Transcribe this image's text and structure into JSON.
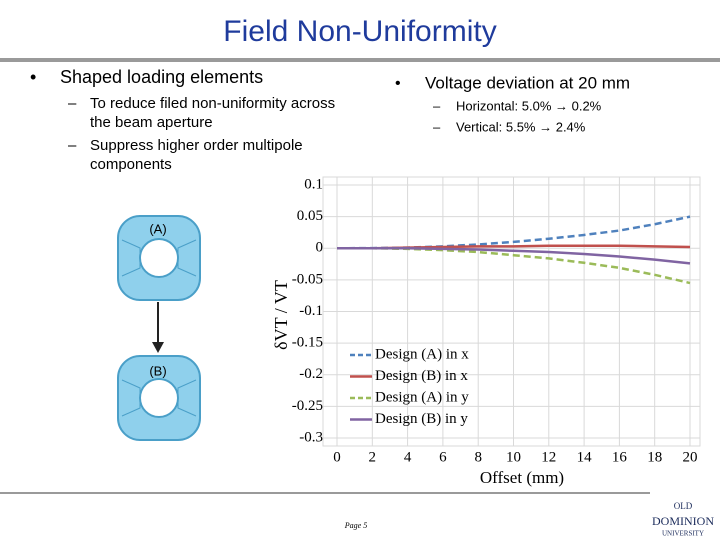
{
  "slide": {
    "title": "Field Non-Uniformity",
    "left_bullet": "Shaped loading elements",
    "left_sub": [
      [
        "To reduce filed non-uniformity across",
        "the beam aperture"
      ],
      [
        "Suppress higher order multipole",
        "components"
      ]
    ],
    "right_bullet": "Voltage deviation at 20 mm",
    "right_sub": [
      "Horizontal: 5.0% → 0.2%",
      "Vertical: 5.5% → 2.4%"
    ],
    "image_labels": [
      "(A)",
      "(B)"
    ],
    "footer": "Page 5",
    "logo": [
      "OLD",
      "DOMINION",
      "UNIVERSITY"
    ]
  },
  "chart_data": {
    "type": "line",
    "xlabel": "Offset (mm)",
    "ylabel": "δVT / VT",
    "x": [
      0,
      2,
      4,
      6,
      8,
      10,
      12,
      14,
      16,
      18,
      20
    ],
    "series": [
      {
        "name": "Design (A) in x",
        "color": "#4f81bd",
        "dashed": true,
        "values": [
          0,
          0.0002,
          0.001,
          0.003,
          0.006,
          0.01,
          0.015,
          0.021,
          0.028,
          0.038,
          0.05
        ]
      },
      {
        "name": "Design (B) in x",
        "color": "#c0504d",
        "dashed": false,
        "values": [
          0,
          0,
          0.001,
          0.002,
          0.003,
          0.003,
          0.004,
          0.004,
          0.004,
          0.003,
          0.002
        ]
      },
      {
        "name": "Design (A) in y",
        "color": "#9bbb59",
        "dashed": true,
        "values": [
          0,
          0,
          -0.001,
          -0.003,
          -0.006,
          -0.011,
          -0.016,
          -0.023,
          -0.031,
          -0.042,
          -0.055
        ]
      },
      {
        "name": "Design (B) in y",
        "color": "#8064a2",
        "dashed": false,
        "values": [
          0,
          0,
          0,
          -0.001,
          -0.002,
          -0.004,
          -0.006,
          -0.009,
          -0.013,
          -0.018,
          -0.024
        ]
      }
    ],
    "xlim": [
      0,
      20
    ],
    "xticks": [
      0,
      2,
      4,
      6,
      8,
      10,
      12,
      14,
      16,
      18,
      20
    ],
    "ylim": [
      -0.3,
      0.1
    ],
    "yticks": [
      0.1,
      0.05,
      0,
      -0.05,
      -0.1,
      -0.15,
      -0.2,
      -0.25,
      -0.3
    ],
    "grid": true
  }
}
